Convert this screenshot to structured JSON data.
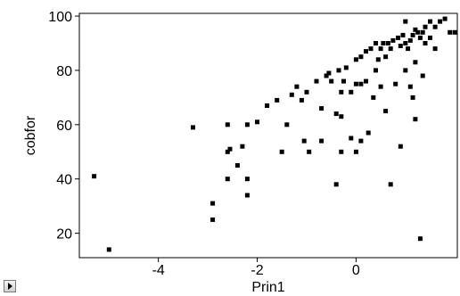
{
  "chart_data": {
    "type": "scatter",
    "title": "",
    "xlabel": "Prin1",
    "ylabel": "cobfor",
    "xlim": [
      -5.6,
      2.05
    ],
    "ylim": [
      11,
      101
    ],
    "xticks": [
      -4,
      -2,
      0
    ],
    "yticks": [
      20,
      40,
      60,
      80,
      100
    ],
    "xtick_labels": [
      "-4",
      "-2",
      "0"
    ],
    "ytick_labels": [
      "20",
      "40",
      "60",
      "80",
      "100"
    ],
    "grid": false,
    "legend": "none",
    "marker_color": "#000000",
    "points": [
      {
        "x": -5.3,
        "y": 41
      },
      {
        "x": -5.0,
        "y": 14
      },
      {
        "x": -3.3,
        "y": 59
      },
      {
        "x": -2.9,
        "y": 31
      },
      {
        "x": -2.9,
        "y": 25
      },
      {
        "x": -2.6,
        "y": 60
      },
      {
        "x": -2.6,
        "y": 50
      },
      {
        "x": -2.55,
        "y": 51
      },
      {
        "x": -2.6,
        "y": 40
      },
      {
        "x": -2.4,
        "y": 45
      },
      {
        "x": -2.3,
        "y": 52
      },
      {
        "x": -2.2,
        "y": 60
      },
      {
        "x": -2.2,
        "y": 40
      },
      {
        "x": -2.2,
        "y": 34
      },
      {
        "x": -2.0,
        "y": 61
      },
      {
        "x": -1.8,
        "y": 67
      },
      {
        "x": -1.6,
        "y": 69
      },
      {
        "x": -1.5,
        "y": 50
      },
      {
        "x": -1.4,
        "y": 60
      },
      {
        "x": -1.3,
        "y": 71
      },
      {
        "x": -1.2,
        "y": 74
      },
      {
        "x": -1.1,
        "y": 69
      },
      {
        "x": -1.05,
        "y": 54
      },
      {
        "x": -1.0,
        "y": 72
      },
      {
        "x": -0.95,
        "y": 50
      },
      {
        "x": -0.8,
        "y": 76
      },
      {
        "x": -0.7,
        "y": 66
      },
      {
        "x": -0.7,
        "y": 54
      },
      {
        "x": -0.6,
        "y": 78
      },
      {
        "x": -0.55,
        "y": 79
      },
      {
        "x": -0.5,
        "y": 76
      },
      {
        "x": -0.4,
        "y": 64
      },
      {
        "x": -0.4,
        "y": 38
      },
      {
        "x": -0.35,
        "y": 80
      },
      {
        "x": -0.3,
        "y": 72
      },
      {
        "x": -0.3,
        "y": 63
      },
      {
        "x": -0.3,
        "y": 50
      },
      {
        "x": -0.25,
        "y": 76
      },
      {
        "x": -0.2,
        "y": 81
      },
      {
        "x": -0.1,
        "y": 72
      },
      {
        "x": -0.1,
        "y": 55
      },
      {
        "x": 0.0,
        "y": 84
      },
      {
        "x": 0.0,
        "y": 75
      },
      {
        "x": 0.0,
        "y": 50
      },
      {
        "x": 0.1,
        "y": 85
      },
      {
        "x": 0.1,
        "y": 75
      },
      {
        "x": 0.1,
        "y": 54
      },
      {
        "x": 0.2,
        "y": 87
      },
      {
        "x": 0.2,
        "y": 76
      },
      {
        "x": 0.25,
        "y": 57
      },
      {
        "x": 0.3,
        "y": 88
      },
      {
        "x": 0.35,
        "y": 70
      },
      {
        "x": 0.4,
        "y": 90
      },
      {
        "x": 0.4,
        "y": 80
      },
      {
        "x": 0.45,
        "y": 84
      },
      {
        "x": 0.5,
        "y": 88
      },
      {
        "x": 0.5,
        "y": 74
      },
      {
        "x": 0.55,
        "y": 90
      },
      {
        "x": 0.6,
        "y": 85
      },
      {
        "x": 0.6,
        "y": 65
      },
      {
        "x": 0.65,
        "y": 90
      },
      {
        "x": 0.7,
        "y": 88
      },
      {
        "x": 0.7,
        "y": 38
      },
      {
        "x": 0.75,
        "y": 91
      },
      {
        "x": 0.8,
        "y": 75
      },
      {
        "x": 0.85,
        "y": 92
      },
      {
        "x": 0.9,
        "y": 89
      },
      {
        "x": 0.9,
        "y": 52
      },
      {
        "x": 0.95,
        "y": 93
      },
      {
        "x": 1.0,
        "y": 98
      },
      {
        "x": 1.0,
        "y": 90
      },
      {
        "x": 1.0,
        "y": 80
      },
      {
        "x": 1.05,
        "y": 88
      },
      {
        "x": 1.1,
        "y": 91
      },
      {
        "x": 1.1,
        "y": 74
      },
      {
        "x": 1.15,
        "y": 93
      },
      {
        "x": 1.15,
        "y": 70
      },
      {
        "x": 1.2,
        "y": 95
      },
      {
        "x": 1.2,
        "y": 83
      },
      {
        "x": 1.2,
        "y": 62
      },
      {
        "x": 1.25,
        "y": 94
      },
      {
        "x": 1.3,
        "y": 92
      },
      {
        "x": 1.35,
        "y": 94
      },
      {
        "x": 1.35,
        "y": 78
      },
      {
        "x": 1.4,
        "y": 96
      },
      {
        "x": 1.4,
        "y": 90
      },
      {
        "x": 1.5,
        "y": 98
      },
      {
        "x": 1.5,
        "y": 92
      },
      {
        "x": 1.6,
        "y": 96
      },
      {
        "x": 1.6,
        "y": 88
      },
      {
        "x": 1.7,
        "y": 98
      },
      {
        "x": 1.8,
        "y": 99
      },
      {
        "x": 1.9,
        "y": 94
      },
      {
        "x": 2.0,
        "y": 94
      },
      {
        "x": 1.3,
        "y": 18
      }
    ]
  }
}
